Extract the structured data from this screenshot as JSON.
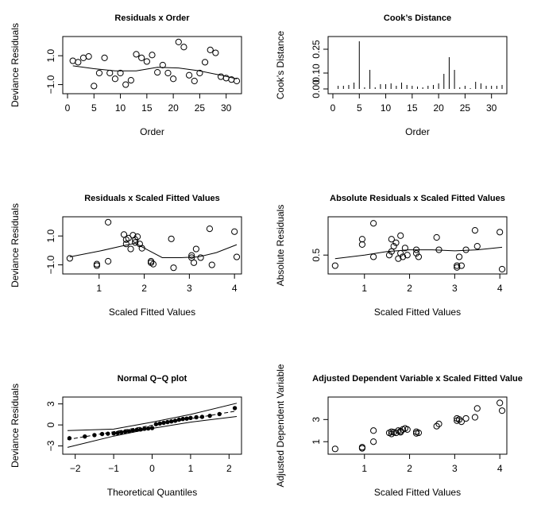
{
  "chart_data": [
    {
      "type": "scatter",
      "title": "Residuals x Order",
      "xlabel": "Order",
      "ylabel": "Deviance Residuals",
      "xlim": [
        0,
        32
      ],
      "ylim": [
        -1.3,
        2.0
      ],
      "xticks": [
        0,
        5,
        10,
        15,
        20,
        25,
        30
      ],
      "xtick_labels": [
        "0",
        "5",
        "10",
        "15",
        "20",
        "25",
        "30"
      ],
      "yticks": [
        -1.0,
        1.0
      ],
      "ytick_labels": [
        "−1.0",
        "1.0"
      ],
      "points": [
        [
          1,
          0.65
        ],
        [
          2,
          0.55
        ],
        [
          3,
          0.85
        ],
        [
          4,
          0.95
        ],
        [
          5,
          -1.1
        ],
        [
          6,
          -0.2
        ],
        [
          7,
          0.85
        ],
        [
          8,
          -0.2
        ],
        [
          9,
          -0.6
        ],
        [
          10,
          -0.2
        ],
        [
          11,
          -1.0
        ],
        [
          12,
          -0.7
        ],
        [
          13,
          1.1
        ],
        [
          14,
          0.85
        ],
        [
          15,
          0.6
        ],
        [
          16,
          1.05
        ],
        [
          17,
          -0.15
        ],
        [
          18,
          0.35
        ],
        [
          19,
          -0.2
        ],
        [
          20,
          -0.6
        ],
        [
          21,
          1.95
        ],
        [
          22,
          1.6
        ],
        [
          23,
          -0.35
        ],
        [
          24,
          -0.75
        ],
        [
          25,
          -0.2
        ],
        [
          26,
          0.55
        ],
        [
          27,
          1.4
        ],
        [
          28,
          1.2
        ],
        [
          29,
          -0.45
        ],
        [
          30,
          -0.55
        ],
        [
          31,
          -0.65
        ],
        [
          32,
          -0.75
        ]
      ],
      "smooth": [
        [
          1,
          0.3
        ],
        [
          5,
          0.1
        ],
        [
          9,
          -0.05
        ],
        [
          13,
          -0.05
        ],
        [
          17,
          0.2
        ],
        [
          21,
          0.15
        ],
        [
          25,
          -0.05
        ],
        [
          29,
          -0.35
        ],
        [
          32,
          -0.6
        ]
      ]
    },
    {
      "type": "bar",
      "title": "Cook’s Distance",
      "xlabel": "Order",
      "ylabel": "Cook’s Distance",
      "xlim": [
        0,
        32
      ],
      "ylim": [
        0,
        0.3
      ],
      "xticks": [
        0,
        5,
        10,
        15,
        20,
        25,
        30
      ],
      "xtick_labels": [
        "0",
        "5",
        "10",
        "15",
        "20",
        "25",
        "30"
      ],
      "yticks": [
        0.0,
        0.1,
        0.25
      ],
      "ytick_labels": [
        "0.00",
        "0.10",
        "0.25"
      ],
      "x": [
        1,
        2,
        3,
        4,
        5,
        6,
        7,
        8,
        9,
        10,
        11,
        12,
        13,
        14,
        15,
        16,
        17,
        18,
        19,
        20,
        21,
        22,
        23,
        24,
        25,
        26,
        27,
        28,
        29,
        30,
        31,
        32
      ],
      "values": [
        0.02,
        0.02,
        0.025,
        0.04,
        0.3,
        0.01,
        0.12,
        0.01,
        0.03,
        0.03,
        0.035,
        0.02,
        0.04,
        0.025,
        0.02,
        0.015,
        0.01,
        0.02,
        0.025,
        0.035,
        0.095,
        0.2,
        0.12,
        0.01,
        0.02,
        0.005,
        0.045,
        0.035,
        0.02,
        0.02,
        0.02,
        0.025
      ]
    },
    {
      "type": "scatter",
      "title": "Residuals x Scaled Fitted Values",
      "xlabel": "Scaled Fitted Values",
      "ylabel": "Deviance Residuals",
      "xlim": [
        0.3,
        4.05
      ],
      "ylim": [
        -1.3,
        2.0
      ],
      "xticks": [
        1,
        2,
        3,
        4
      ],
      "xtick_labels": [
        "1",
        "2",
        "3",
        "4"
      ],
      "yticks": [
        -1.0,
        1.0
      ],
      "ytick_labels": [
        "−1.0",
        "1.0"
      ],
      "points": [
        [
          0.35,
          -0.55
        ],
        [
          0.95,
          -0.95
        ],
        [
          0.95,
          -1.05
        ],
        [
          1.2,
          1.95
        ],
        [
          1.2,
          -0.75
        ],
        [
          1.55,
          1.1
        ],
        [
          1.6,
          0.75
        ],
        [
          1.6,
          0.45
        ],
        [
          1.65,
          0.85
        ],
        [
          1.7,
          0.1
        ],
        [
          1.75,
          1.05
        ],
        [
          1.8,
          0.75
        ],
        [
          1.8,
          0.55
        ],
        [
          1.85,
          0.95
        ],
        [
          1.9,
          0.45
        ],
        [
          1.95,
          0.15
        ],
        [
          2.15,
          -0.75
        ],
        [
          2.15,
          -0.85
        ],
        [
          2.2,
          -0.95
        ],
        [
          2.6,
          0.8
        ],
        [
          2.65,
          -1.2
        ],
        [
          3.05,
          -0.5
        ],
        [
          3.05,
          -0.35
        ],
        [
          3.1,
          -0.85
        ],
        [
          3.15,
          0.1
        ],
        [
          3.25,
          -0.5
        ],
        [
          3.45,
          1.5
        ],
        [
          3.5,
          -1.0
        ],
        [
          4.0,
          1.3
        ],
        [
          4.05,
          -0.45
        ]
      ],
      "smooth": [
        [
          0.35,
          -0.45
        ],
        [
          1.0,
          -0.05
        ],
        [
          1.5,
          0.3
        ],
        [
          1.8,
          0.5
        ],
        [
          2.1,
          0.0
        ],
        [
          2.4,
          -0.5
        ],
        [
          2.8,
          -0.5
        ],
        [
          3.2,
          -0.45
        ],
        [
          3.6,
          -0.15
        ],
        [
          4.05,
          0.4
        ]
      ]
    },
    {
      "type": "scatter",
      "title": "Absolute Residuals x Scaled Fitted Values",
      "xlabel": "Scaled Fitted Values",
      "ylabel": "Absolute Residuals",
      "xlim": [
        0.3,
        4.05
      ],
      "ylim": [
        0.1,
        1.45
      ],
      "xticks": [
        1,
        2,
        3,
        4
      ],
      "xtick_labels": [
        "1",
        "2",
        "3",
        "4"
      ],
      "yticks": [
        0.5
      ],
      "ytick_labels": [
        "0.5"
      ],
      "points": [
        [
          0.35,
          0.2
        ],
        [
          0.95,
          0.8
        ],
        [
          0.95,
          0.95
        ],
        [
          1.2,
          1.4
        ],
        [
          1.2,
          0.45
        ],
        [
          1.55,
          0.5
        ],
        [
          1.6,
          0.6
        ],
        [
          1.6,
          0.95
        ],
        [
          1.65,
          0.75
        ],
        [
          1.7,
          0.85
        ],
        [
          1.75,
          0.4
        ],
        [
          1.8,
          1.05
        ],
        [
          1.8,
          0.55
        ],
        [
          1.85,
          0.45
        ],
        [
          1.9,
          0.7
        ],
        [
          1.95,
          0.5
        ],
        [
          2.15,
          0.55
        ],
        [
          2.15,
          0.65
        ],
        [
          2.2,
          0.45
        ],
        [
          2.6,
          1.0
        ],
        [
          2.65,
          0.65
        ],
        [
          3.05,
          0.2
        ],
        [
          3.05,
          0.15
        ],
        [
          3.1,
          0.45
        ],
        [
          3.15,
          0.2
        ],
        [
          3.25,
          0.65
        ],
        [
          3.45,
          1.2
        ],
        [
          3.5,
          0.75
        ],
        [
          4.0,
          1.15
        ],
        [
          4.05,
          0.1
        ]
      ],
      "smooth": [
        [
          0.35,
          0.4
        ],
        [
          1.0,
          0.5
        ],
        [
          1.5,
          0.6
        ],
        [
          2.0,
          0.65
        ],
        [
          2.5,
          0.65
        ],
        [
          3.0,
          0.62
        ],
        [
          3.5,
          0.65
        ],
        [
          4.05,
          0.72
        ]
      ]
    },
    {
      "type": "scatter",
      "title": "Normal Q−Q plot",
      "xlabel": "Theoretical Quantiles",
      "ylabel": "Deviance Residuals",
      "xlim": [
        -2.2,
        2.2
      ],
      "ylim": [
        -3.5,
        3.3
      ],
      "xticks": [
        -2,
        -1,
        0,
        1,
        2
      ],
      "xtick_labels": [
        "−2",
        "−1",
        "0",
        "1",
        "2"
      ],
      "yticks": [
        -3,
        0,
        3
      ],
      "ytick_labels": [
        "−3",
        "0",
        "3"
      ],
      "points": [
        [
          -2.15,
          -1.9
        ],
        [
          -1.75,
          -1.65
        ],
        [
          -1.5,
          -1.45
        ],
        [
          -1.3,
          -1.3
        ],
        [
          -1.15,
          -1.25
        ],
        [
          -1.0,
          -1.2
        ],
        [
          -0.9,
          -1.15
        ],
        [
          -0.8,
          -1.05
        ],
        [
          -0.7,
          -0.95
        ],
        [
          -0.6,
          -0.9
        ],
        [
          -0.5,
          -0.8
        ],
        [
          -0.4,
          -0.7
        ],
        [
          -0.3,
          -0.65
        ],
        [
          -0.2,
          -0.55
        ],
        [
          -0.1,
          -0.5
        ],
        [
          0.0,
          -0.45
        ],
        [
          0.1,
          0.1
        ],
        [
          0.2,
          0.2
        ],
        [
          0.3,
          0.3
        ],
        [
          0.4,
          0.4
        ],
        [
          0.5,
          0.5
        ],
        [
          0.6,
          0.6
        ],
        [
          0.7,
          0.75
        ],
        [
          0.8,
          0.85
        ],
        [
          0.9,
          0.9
        ],
        [
          1.0,
          1.0
        ],
        [
          1.15,
          1.1
        ],
        [
          1.3,
          1.15
        ],
        [
          1.5,
          1.3
        ],
        [
          1.75,
          1.55
        ],
        [
          2.15,
          2.4
        ]
      ],
      "ref_line": [
        [
          -2.2,
          -2.1
        ],
        [
          2.2,
          2.0
        ]
      ],
      "envelope_upper": [
        [
          -2.2,
          -0.8
        ],
        [
          -1.0,
          -0.6
        ],
        [
          0.0,
          0.4
        ],
        [
          1.0,
          1.5
        ],
        [
          2.2,
          3.1
        ]
      ],
      "envelope_lower": [
        [
          -2.2,
          -3.2
        ],
        [
          -1.0,
          -1.6
        ],
        [
          0.0,
          -0.5
        ],
        [
          1.0,
          0.4
        ],
        [
          2.2,
          1.2
        ]
      ]
    },
    {
      "type": "scatter",
      "title": "Adjusted Dependent Variable x Scaled Fitted Value",
      "xlabel": "Scaled Fitted Values",
      "ylabel": "Adjusted Dependent Variable",
      "xlim": [
        0.3,
        4.05
      ],
      "ylim": [
        0.3,
        4.6
      ],
      "xticks": [
        1,
        2,
        3,
        4
      ],
      "xtick_labels": [
        "1",
        "2",
        "3",
        "4"
      ],
      "yticks": [
        1,
        3
      ],
      "ytick_labels": [
        "1",
        "3"
      ],
      "points": [
        [
          0.35,
          0.35
        ],
        [
          0.95,
          0.5
        ],
        [
          0.95,
          0.4
        ],
        [
          1.2,
          1.0
        ],
        [
          1.2,
          2.0
        ],
        [
          1.55,
          1.8
        ],
        [
          1.6,
          1.9
        ],
        [
          1.6,
          1.7
        ],
        [
          1.65,
          1.85
        ],
        [
          1.7,
          1.8
        ],
        [
          1.75,
          2.0
        ],
        [
          1.8,
          1.95
        ],
        [
          1.8,
          1.85
        ],
        [
          1.85,
          2.1
        ],
        [
          1.9,
          2.2
        ],
        [
          1.95,
          2.1
        ],
        [
          2.15,
          1.75
        ],
        [
          2.15,
          1.9
        ],
        [
          2.2,
          1.8
        ],
        [
          2.6,
          2.4
        ],
        [
          2.65,
          2.6
        ],
        [
          3.05,
          2.9
        ],
        [
          3.05,
          3.1
        ],
        [
          3.1,
          3.0
        ],
        [
          3.15,
          2.8
        ],
        [
          3.25,
          3.1
        ],
        [
          3.45,
          3.2
        ],
        [
          3.5,
          4.0
        ],
        [
          4.0,
          4.5
        ],
        [
          4.05,
          3.8
        ]
      ]
    }
  ]
}
